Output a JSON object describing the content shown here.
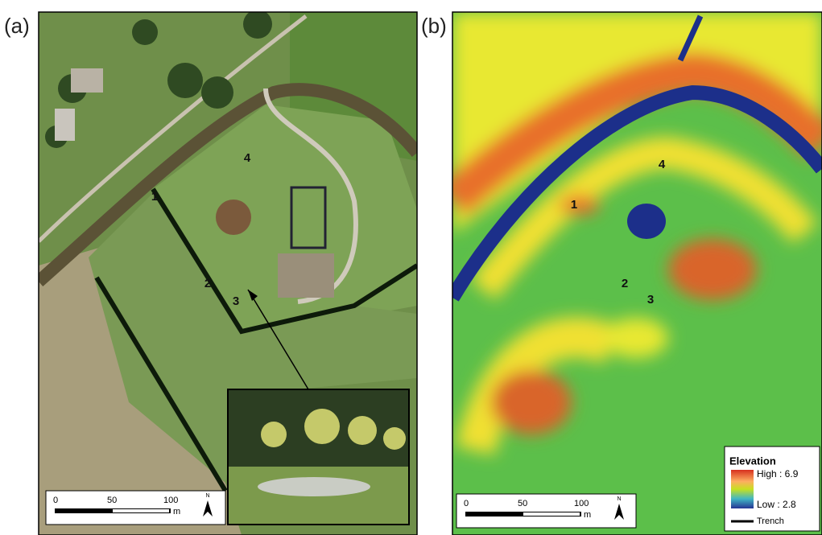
{
  "panel_a": {
    "label": "(a)",
    "site_labels": [
      "1",
      "2",
      "3",
      "4"
    ],
    "scale_bar": {
      "ticks": [
        0,
        50,
        100
      ],
      "unit": "m",
      "north": "N"
    }
  },
  "panel_b": {
    "label": "(b)",
    "site_labels": [
      "1",
      "2",
      "3",
      "4"
    ],
    "scale_bar": {
      "ticks": [
        0,
        50,
        100
      ],
      "unit": "m",
      "north": "N"
    },
    "legend": {
      "title": "Elevation",
      "high": "High : 6.9",
      "low": "Low : 2.8",
      "trench": "Trench"
    }
  }
}
